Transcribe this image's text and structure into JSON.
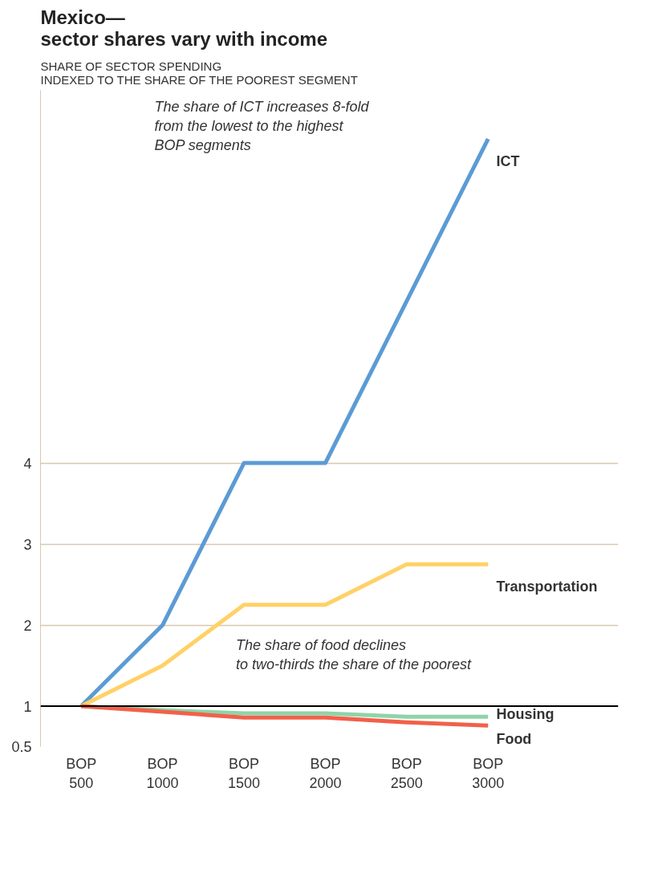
{
  "chart_data": {
    "type": "line",
    "title": "Mexico—\nsector shares vary with income",
    "subtitle": "SHARE OF SECTOR SPENDING\nINDEXED TO THE SHARE OF THE POOREST SEGMENT",
    "categories": [
      "BOP\n500",
      "BOP\n1000",
      "BOP\n1500",
      "BOP\n2000",
      "BOP\n2500",
      "BOP\n3000"
    ],
    "series": [
      {
        "name": "ICT",
        "color": "#5b9bd5",
        "values": [
          1,
          2,
          4,
          4,
          6,
          8
        ]
      },
      {
        "name": "Transportation",
        "color": "#ffd166",
        "values": [
          1,
          1.5,
          2.25,
          2.25,
          2.75,
          2.75
        ]
      },
      {
        "name": "Housing",
        "color": "#8fd4a8",
        "values": [
          1,
          0.95,
          0.91,
          0.91,
          0.87,
          0.87
        ]
      },
      {
        "name": "Food",
        "color": "#f2604a",
        "values": [
          1,
          0.93,
          0.86,
          0.86,
          0.8,
          0.76
        ]
      }
    ],
    "ylim": [
      0.5,
      8.6
    ],
    "yticks": [
      0.5,
      1,
      2,
      3,
      4
    ],
    "grid": "y",
    "ref_lines": [
      {
        "axis": "y",
        "value": 1,
        "color": "#000000"
      }
    ],
    "annotations": [
      "The share of ICT increases 8-fold\nfrom the lowest to the highest\nBOP segments",
      "The share of food declines\nto two-thirds the share of the poorest"
    ],
    "marker": "none",
    "line_style": "solid"
  }
}
